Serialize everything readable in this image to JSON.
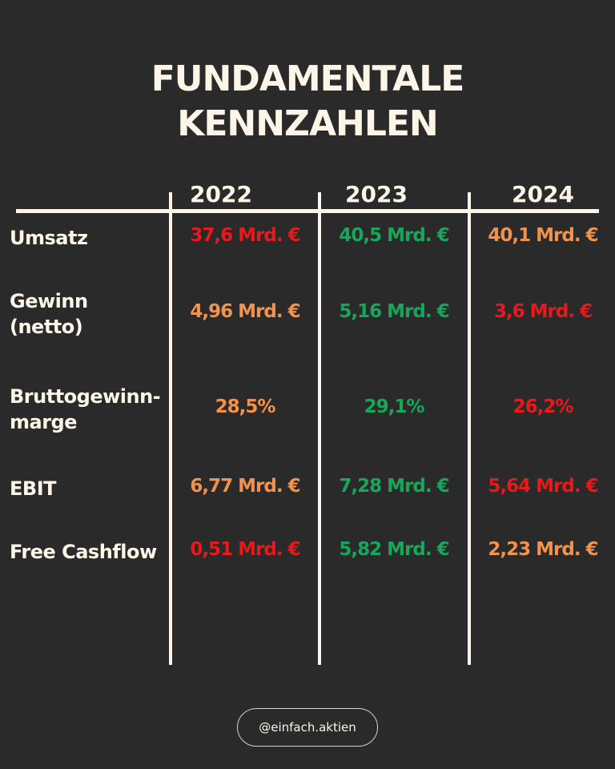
{
  "title": [
    "FUNDAMENTALE",
    "KENNZAHLEN"
  ],
  "table": {
    "columns": [
      "2022",
      "2023",
      "2024"
    ],
    "rows": [
      {
        "label": [
          "Umsatz"
        ],
        "cells": [
          {
            "text": "37,6 Mrd. €",
            "color": "#e8191b"
          },
          {
            "text": "40,5 Mrd. €",
            "color": "#17a75a"
          },
          {
            "text": "40,1 Mrd. €",
            "color": "#f2924c"
          }
        ]
      },
      {
        "label": [
          "Gewinn",
          "(netto)"
        ],
        "cells": [
          {
            "text": "4,96 Mrd. €",
            "color": "#f2924c"
          },
          {
            "text": "5,16 Mrd. €",
            "color": "#17a75a"
          },
          {
            "text": "3,6 Mrd. €",
            "color": "#e8191b"
          }
        ]
      },
      {
        "label": [
          "Bruttogewinn-",
          "marge"
        ],
        "cells": [
          {
            "text": "28,5%",
            "color": "#f2924c"
          },
          {
            "text": "29,1%",
            "color": "#17a75a"
          },
          {
            "text": "26,2%",
            "color": "#e8191b"
          }
        ]
      },
      {
        "label": [
          "EBIT"
        ],
        "cells": [
          {
            "text": "6,77 Mrd. €",
            "color": "#f2924c"
          },
          {
            "text": "7,28 Mrd. €",
            "color": "#17a75a"
          },
          {
            "text": "5,64 Mrd. €",
            "color": "#e8191b"
          }
        ]
      },
      {
        "label": [
          "Free Cashflow"
        ],
        "cells": [
          {
            "text": "0,51 Mrd. €",
            "color": "#e8191b"
          },
          {
            "text": "5,82 Mrd. €",
            "color": "#17a75a"
          },
          {
            "text": "2,23 Mrd. €",
            "color": "#f2924c"
          }
        ]
      }
    ]
  },
  "footer": "@einfach.aktien"
}
